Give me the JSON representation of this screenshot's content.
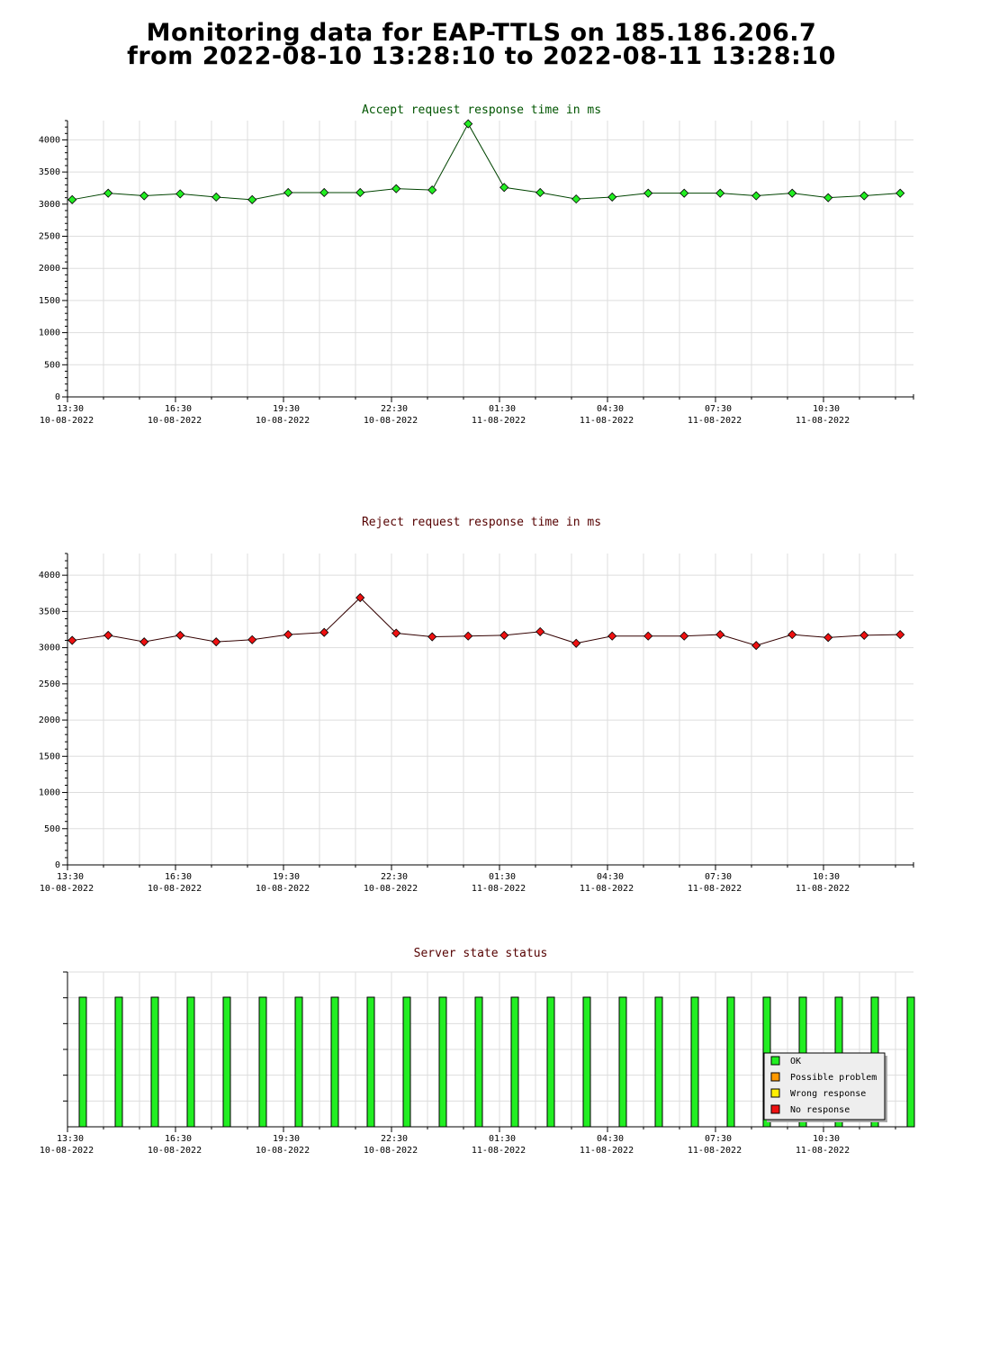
{
  "page": {
    "title_line1": "Monitoring data for EAP-TTLS on 185.186.206.7",
    "title_line2": "from 2022-08-10 13:28:10 to 2022-08-11 13:28:10"
  },
  "colors": {
    "accept_title": "#005500",
    "reject_title": "#550000",
    "status_title": "#550000",
    "ok": "#22ee22",
    "possible_problem": "#ff9900",
    "wrong_response": "#ffee00",
    "no_response": "#ee1111",
    "grid": "#dddddd"
  },
  "x_axis": {
    "ticks": [
      {
        "x": 0,
        "time": "13:30",
        "date": "10-08-2022"
      },
      {
        "x": 3,
        "time": "16:30",
        "date": "10-08-2022"
      },
      {
        "x": 6,
        "time": "19:30",
        "date": "10-08-2022"
      },
      {
        "x": 9,
        "time": "22:30",
        "date": "10-08-2022"
      },
      {
        "x": 12,
        "time": "01:30",
        "date": "11-08-2022"
      },
      {
        "x": 15,
        "time": "04:30",
        "date": "11-08-2022"
      },
      {
        "x": 18,
        "time": "07:30",
        "date": "11-08-2022"
      },
      {
        "x": 21,
        "time": "10:30",
        "date": "11-08-2022"
      }
    ]
  },
  "chart_data": [
    {
      "type": "line",
      "title": "Accept request response time in ms",
      "ylim": [
        0,
        4300
      ],
      "yticks": [
        0,
        500,
        1000,
        1500,
        2000,
        2500,
        3000,
        3500,
        4000
      ],
      "grid": true,
      "series": [
        {
          "x": [
            0.13,
            1.13,
            2.13,
            3.13,
            4.13,
            5.13,
            6.13,
            7.13,
            8.13,
            9.13,
            10.13,
            11.13,
            12.13,
            13.13,
            14.13,
            15.13,
            16.13,
            17.13,
            18.13,
            19.13,
            20.13,
            21.13,
            22.13,
            23.13
          ],
          "values": [
            3070,
            3170,
            3130,
            3160,
            3110,
            3070,
            3180,
            3180,
            3180,
            3240,
            3220,
            4250,
            3260,
            3180,
            3080,
            3110,
            3170,
            3170,
            3170,
            3130,
            3170,
            3100,
            3130,
            3170
          ]
        }
      ]
    },
    {
      "type": "line",
      "title": "Reject request response time in ms",
      "ylim": [
        0,
        4300
      ],
      "yticks": [
        0,
        500,
        1000,
        1500,
        2000,
        2500,
        3000,
        3500,
        4000
      ],
      "grid": true,
      "series": [
        {
          "x": [
            0.13,
            1.13,
            2.13,
            3.13,
            4.13,
            5.13,
            6.13,
            7.13,
            8.13,
            9.13,
            10.13,
            11.13,
            12.13,
            13.13,
            14.13,
            15.13,
            16.13,
            17.13,
            18.13,
            19.13,
            20.13,
            21.13,
            22.13,
            23.13
          ],
          "values": [
            3100,
            3170,
            3080,
            3170,
            3080,
            3110,
            3180,
            3210,
            3690,
            3200,
            3150,
            3160,
            3170,
            3220,
            3060,
            3160,
            3160,
            3160,
            3180,
            3030,
            3180,
            3140,
            3170,
            3180
          ]
        }
      ]
    },
    {
      "type": "bar",
      "title": "Server state status",
      "grid": true,
      "x": [
        0.5,
        1.5,
        2.5,
        3.5,
        4.5,
        5.5,
        6.5,
        7.5,
        8.5,
        9.5,
        10.5,
        11.5,
        12.5,
        13.5,
        14.5,
        15.5,
        16.5,
        17.5,
        18.5,
        19.5,
        20.5,
        21.5,
        22.5,
        23.5
      ],
      "states": [
        "OK",
        "OK",
        "OK",
        "OK",
        "OK",
        "OK",
        "OK",
        "OK",
        "OK",
        "OK",
        "OK",
        "OK",
        "OK",
        "OK",
        "OK",
        "OK",
        "OK",
        "OK",
        "OK",
        "OK",
        "OK",
        "OK",
        "OK",
        "OK"
      ],
      "legend_placement": "bottom-right",
      "legend": [
        {
          "label": "OK",
          "color": "#22ee22"
        },
        {
          "label": "Possible problem",
          "color": "#ff9900"
        },
        {
          "label": "Wrong response",
          "color": "#ffee00"
        },
        {
          "label": "No response",
          "color": "#ee1111"
        }
      ]
    }
  ]
}
